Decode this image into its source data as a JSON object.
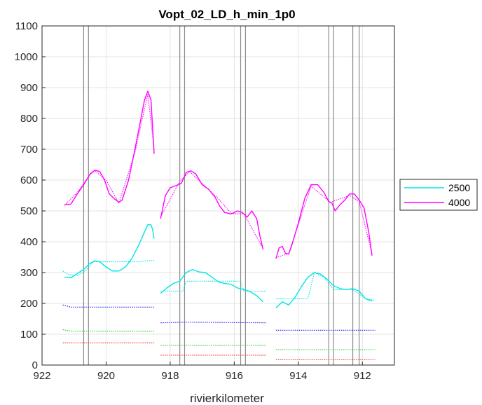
{
  "chart_data": {
    "type": "line",
    "title": "Vopt_02_LD_h_min_1p0",
    "xlabel": "rivierkilometer",
    "ylabel": "",
    "xlim": [
      922,
      911
    ],
    "x_reversed": true,
    "ylim": [
      0,
      1100
    ],
    "xticks": [
      "922",
      "920",
      "918",
      "916",
      "914",
      "912"
    ],
    "yticks": [
      "0",
      "100",
      "200",
      "300",
      "400",
      "500",
      "600",
      "700",
      "800",
      "900",
      "1000",
      "1100"
    ],
    "grid": true,
    "legend_position": "outside-right",
    "legend": [
      {
        "name": "2500",
        "color": "#00e5e5"
      },
      {
        "name": "4000",
        "color": "#ff00ff"
      }
    ],
    "vertical_lines_km": [
      920.7,
      920.55,
      917.7,
      917.55,
      915.8,
      915.65,
      913.05,
      912.9,
      912.3,
      912.1
    ],
    "series": [
      {
        "name": "2500",
        "color": "#00e5e5",
        "style": "solid",
        "segments": [
          [
            [
              921.3,
              285
            ],
            [
              921.1,
              283
            ],
            [
              920.9,
              297
            ],
            [
              920.7,
              310
            ],
            [
              920.5,
              330
            ],
            [
              920.35,
              338
            ],
            [
              920.2,
              335
            ],
            [
              920.0,
              318
            ],
            [
              919.8,
              305
            ],
            [
              919.6,
              305
            ],
            [
              919.4,
              318
            ],
            [
              919.2,
              345
            ],
            [
              919.0,
              385
            ],
            [
              918.85,
              420
            ],
            [
              918.7,
              455
            ],
            [
              918.6,
              455
            ],
            [
              918.55,
              440
            ],
            [
              918.5,
              410
            ]
          ],
          [
            [
              918.3,
              232
            ],
            [
              918.1,
              250
            ],
            [
              917.9,
              265
            ],
            [
              917.7,
              272
            ],
            [
              917.5,
              300
            ],
            [
              917.3,
              310
            ],
            [
              917.1,
              302
            ],
            [
              916.9,
              300
            ],
            [
              916.7,
              285
            ],
            [
              916.5,
              270
            ],
            [
              916.3,
              265
            ],
            [
              916.1,
              262
            ],
            [
              915.9,
              250
            ],
            [
              915.7,
              245
            ],
            [
              915.5,
              238
            ],
            [
              915.3,
              225
            ],
            [
              915.1,
              205
            ]
          ],
          [
            [
              914.7,
              185
            ],
            [
              914.5,
              205
            ],
            [
              914.3,
              195
            ],
            [
              914.1,
              220
            ],
            [
              913.9,
              255
            ],
            [
              913.7,
              285
            ],
            [
              913.5,
              300
            ],
            [
              913.3,
              295
            ],
            [
              913.1,
              278
            ],
            [
              912.9,
              258
            ],
            [
              912.7,
              248
            ],
            [
              912.5,
              245
            ],
            [
              912.3,
              248
            ],
            [
              912.1,
              240
            ],
            [
              911.9,
              215
            ],
            [
              911.7,
              208
            ]
          ]
        ]
      },
      {
        "name": "2500 (dashed)",
        "color": "#00e5e5",
        "style": "dotted",
        "segments": [
          [
            [
              921.35,
              305
            ],
            [
              921.2,
              295
            ],
            [
              920.9,
              290
            ],
            [
              920.6,
              310
            ],
            [
              920.4,
              335
            ],
            [
              920.0,
              335
            ],
            [
              919.5,
              335
            ],
            [
              919.0,
              335
            ],
            [
              918.5,
              340
            ]
          ],
          [
            [
              918.3,
              240
            ],
            [
              917.6,
              240
            ],
            [
              917.5,
              272
            ],
            [
              917.0,
              272
            ],
            [
              916.5,
              272
            ],
            [
              915.8,
              272
            ],
            [
              915.7,
              240
            ],
            [
              915.0,
              240
            ]
          ],
          [
            [
              914.7,
              215
            ],
            [
              913.7,
              215
            ],
            [
              913.5,
              300
            ],
            [
              913.2,
              285
            ],
            [
              912.9,
              245
            ],
            [
              912.3,
              245
            ],
            [
              911.9,
              215
            ],
            [
              911.6,
              210
            ]
          ]
        ]
      },
      {
        "name": "4000",
        "color": "#ff00ff",
        "style": "solid",
        "segments": [
          [
            [
              921.3,
              520
            ],
            [
              921.1,
              522
            ],
            [
              920.9,
              555
            ],
            [
              920.7,
              585
            ],
            [
              920.5,
              620
            ],
            [
              920.35,
              632
            ],
            [
              920.2,
              628
            ],
            [
              920.05,
              600
            ],
            [
              919.9,
              555
            ],
            [
              919.75,
              540
            ],
            [
              919.6,
              528
            ],
            [
              919.5,
              535
            ],
            [
              919.3,
              600
            ],
            [
              919.1,
              700
            ],
            [
              918.95,
              780
            ],
            [
              918.8,
              860
            ],
            [
              918.7,
              888
            ],
            [
              918.6,
              860
            ],
            [
              918.5,
              685
            ]
          ],
          [
            [
              918.3,
              475
            ],
            [
              918.15,
              550
            ],
            [
              918.0,
              575
            ],
            [
              917.8,
              583
            ],
            [
              917.65,
              590
            ],
            [
              917.5,
              625
            ],
            [
              917.35,
              630
            ],
            [
              917.2,
              620
            ],
            [
              917.0,
              585
            ],
            [
              916.8,
              570
            ],
            [
              916.6,
              545
            ],
            [
              916.45,
              515
            ],
            [
              916.3,
              495
            ],
            [
              916.1,
              490
            ],
            [
              915.9,
              500
            ],
            [
              915.75,
              495
            ],
            [
              915.6,
              480
            ],
            [
              915.45,
              500
            ],
            [
              915.3,
              475
            ],
            [
              915.2,
              420
            ],
            [
              915.1,
              375
            ]
          ],
          [
            [
              914.7,
              345
            ],
            [
              914.6,
              380
            ],
            [
              914.5,
              385
            ],
            [
              914.4,
              362
            ],
            [
              914.3,
              360
            ],
            [
              914.2,
              390
            ],
            [
              914.0,
              460
            ],
            [
              913.8,
              540
            ],
            [
              913.6,
              585
            ],
            [
              913.4,
              585
            ],
            [
              913.2,
              560
            ],
            [
              913.05,
              530
            ],
            [
              912.95,
              525
            ],
            [
              912.85,
              500
            ],
            [
              912.7,
              520
            ],
            [
              912.55,
              535
            ],
            [
              912.4,
              555
            ],
            [
              912.25,
              555
            ],
            [
              912.1,
              535
            ],
            [
              911.95,
              510
            ],
            [
              911.8,
              430
            ],
            [
              911.7,
              355
            ]
          ]
        ]
      },
      {
        "name": "4000 (dashed)",
        "color": "#ff00ff",
        "style": "dotted",
        "segments": [
          [
            [
              921.3,
              518
            ],
            [
              920.9,
              560
            ],
            [
              920.5,
              618
            ],
            [
              920.35,
              630
            ],
            [
              920.0,
              600
            ],
            [
              919.6,
              525
            ],
            [
              919.1,
              690
            ],
            [
              918.7,
              878
            ],
            [
              918.5,
              700
            ]
          ],
          [
            [
              918.3,
              480
            ],
            [
              917.7,
              595
            ],
            [
              917.4,
              628
            ],
            [
              916.5,
              540
            ],
            [
              916.1,
              492
            ],
            [
              915.7,
              490
            ],
            [
              915.1,
              378
            ]
          ],
          [
            [
              914.7,
              348
            ],
            [
              914.3,
              362
            ],
            [
              913.6,
              580
            ],
            [
              913.0,
              528
            ],
            [
              912.4,
              550
            ],
            [
              912.1,
              530
            ],
            [
              911.7,
              360
            ]
          ]
        ]
      },
      {
        "name": "blue",
        "color": "#1a1aff",
        "style": "dotted",
        "segments": [
          [
            [
              921.35,
              195
            ],
            [
              921.1,
              188
            ],
            [
              918.5,
              188
            ]
          ],
          [
            [
              918.3,
              137
            ],
            [
              917.5,
              139
            ],
            [
              915.0,
              137
            ]
          ],
          [
            [
              914.7,
              113
            ],
            [
              911.6,
              113
            ]
          ]
        ]
      },
      {
        "name": "green",
        "color": "#22cc22",
        "style": "dotted",
        "segments": [
          [
            [
              921.35,
              115
            ],
            [
              921.1,
              110
            ],
            [
              918.5,
              110
            ]
          ],
          [
            [
              918.3,
              64
            ],
            [
              915.0,
              64
            ]
          ],
          [
            [
              914.7,
              50
            ],
            [
              911.6,
              50
            ]
          ]
        ]
      },
      {
        "name": "red",
        "color": "#ff2222",
        "style": "dotted",
        "segments": [
          [
            [
              921.35,
              72
            ],
            [
              918.5,
              72
            ]
          ],
          [
            [
              918.3,
              32
            ],
            [
              915.0,
              32
            ]
          ],
          [
            [
              914.7,
              17
            ],
            [
              911.6,
              17
            ]
          ]
        ]
      }
    ]
  }
}
